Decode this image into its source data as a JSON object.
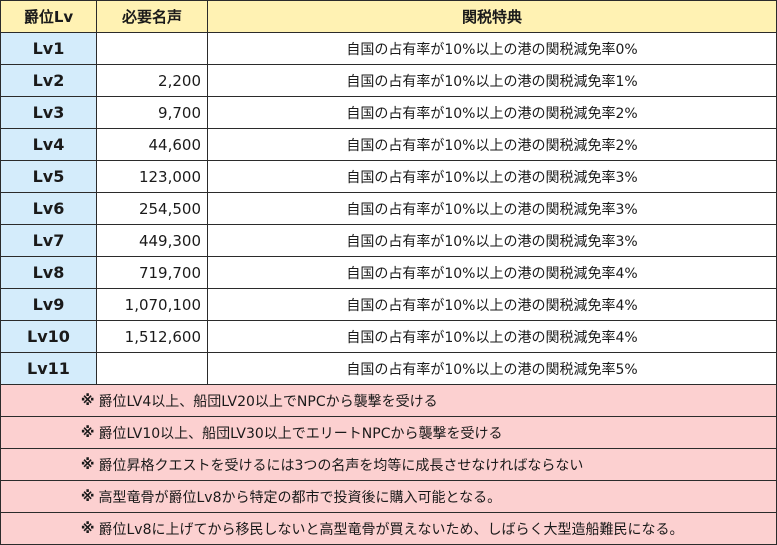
{
  "headers": {
    "rank": "爵位Lv",
    "fame": "必要名声",
    "benefit": "関税特典"
  },
  "rows": [
    {
      "lv": "Lv1",
      "fame": "",
      "benefit": "自国の占有率が10%以上の港の関税減免率0%"
    },
    {
      "lv": "Lv2",
      "fame": "2,200",
      "benefit": "自国の占有率が10%以上の港の関税減免率1%"
    },
    {
      "lv": "Lv3",
      "fame": "9,700",
      "benefit": "自国の占有率が10%以上の港の関税減免率2%"
    },
    {
      "lv": "Lv4",
      "fame": "44,600",
      "benefit": "自国の占有率が10%以上の港の関税減免率2%"
    },
    {
      "lv": "Lv5",
      "fame": "123,000",
      "benefit": "自国の占有率が10%以上の港の関税減免率3%"
    },
    {
      "lv": "Lv6",
      "fame": "254,500",
      "benefit": "自国の占有率が10%以上の港の関税減免率3%"
    },
    {
      "lv": "Lv7",
      "fame": "449,300",
      "benefit": "自国の占有率が10%以上の港の関税減免率3%"
    },
    {
      "lv": "Lv8",
      "fame": "719,700",
      "benefit": "自国の占有率が10%以上の港の関税減免率4%"
    },
    {
      "lv": "Lv9",
      "fame": "1,070,100",
      "benefit": "自国の占有率が10%以上の港の関税減免率4%"
    },
    {
      "lv": "Lv10",
      "fame": "1,512,600",
      "benefit": "自国の占有率が10%以上の港の関税減免率4%"
    },
    {
      "lv": "Lv11",
      "fame": "",
      "benefit": "自国の占有率が10%以上の港の関税減免率5%"
    }
  ],
  "note_mark": "※",
  "notes": [
    "爵位LV4以上、船団LV20以上でNPCから襲撃を受ける",
    "爵位LV10以上、船団LV30以上でエリートNPCから襲撃を受ける",
    "爵位昇格クエストを受けるには3つの名声を均等に成長させなければならない",
    "高型竜骨が爵位Lv8から特定の都市で投資後に購入可能となる。",
    "爵位Lv8に上げてから移民しないと高型竜骨が買えないため、しばらく大型造船難民になる。"
  ],
  "colors": {
    "header_bg": "#fff2b3",
    "level_bg": "#d4ecfb",
    "note_bg": "#fcd0d0"
  }
}
